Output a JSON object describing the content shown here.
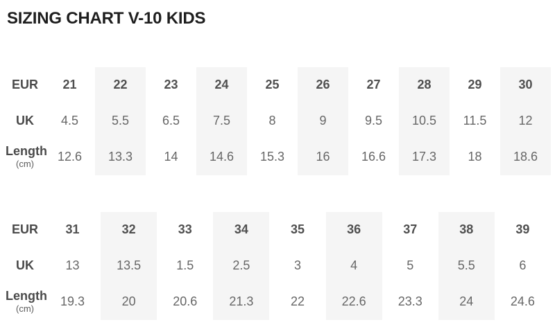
{
  "page": {
    "title": "SIZING CHART V-10 KIDS"
  },
  "colors": {
    "background": "#ffffff",
    "title_text": "#1e1e1e",
    "row_header_text": "#4a4a4a",
    "eur_value_text": "#4f4f4f",
    "value_text": "#666666",
    "stripe_background": "#f5f5f5"
  },
  "chart_data": [
    {
      "type": "table",
      "rows": [
        {
          "header": "EUR",
          "values": [
            "21",
            "22",
            "23",
            "24",
            "25",
            "26",
            "27",
            "28",
            "29",
            "30"
          ]
        },
        {
          "header": "UK",
          "values": [
            "4.5",
            "5.5",
            "6.5",
            "7.5",
            "8",
            "9",
            "9.5",
            "10.5",
            "11.5",
            "12"
          ]
        },
        {
          "header": "Length",
          "unit": "(cm)",
          "values": [
            "12.6",
            "13.3",
            "14",
            "14.6",
            "15.3",
            "16",
            "16.6",
            "17.3",
            "18",
            "18.6"
          ]
        }
      ]
    },
    {
      "type": "table",
      "rows": [
        {
          "header": "EUR",
          "values": [
            "31",
            "32",
            "33",
            "34",
            "35",
            "36",
            "37",
            "38",
            "39"
          ]
        },
        {
          "header": "UK",
          "values": [
            "13",
            "13.5",
            "1.5",
            "2.5",
            "3",
            "4",
            "5",
            "5.5",
            "6"
          ]
        },
        {
          "header": "Length",
          "unit": "(cm)",
          "values": [
            "19.3",
            "20",
            "20.6",
            "21.3",
            "22",
            "22.6",
            "23.3",
            "24",
            "24.6"
          ]
        }
      ]
    }
  ]
}
